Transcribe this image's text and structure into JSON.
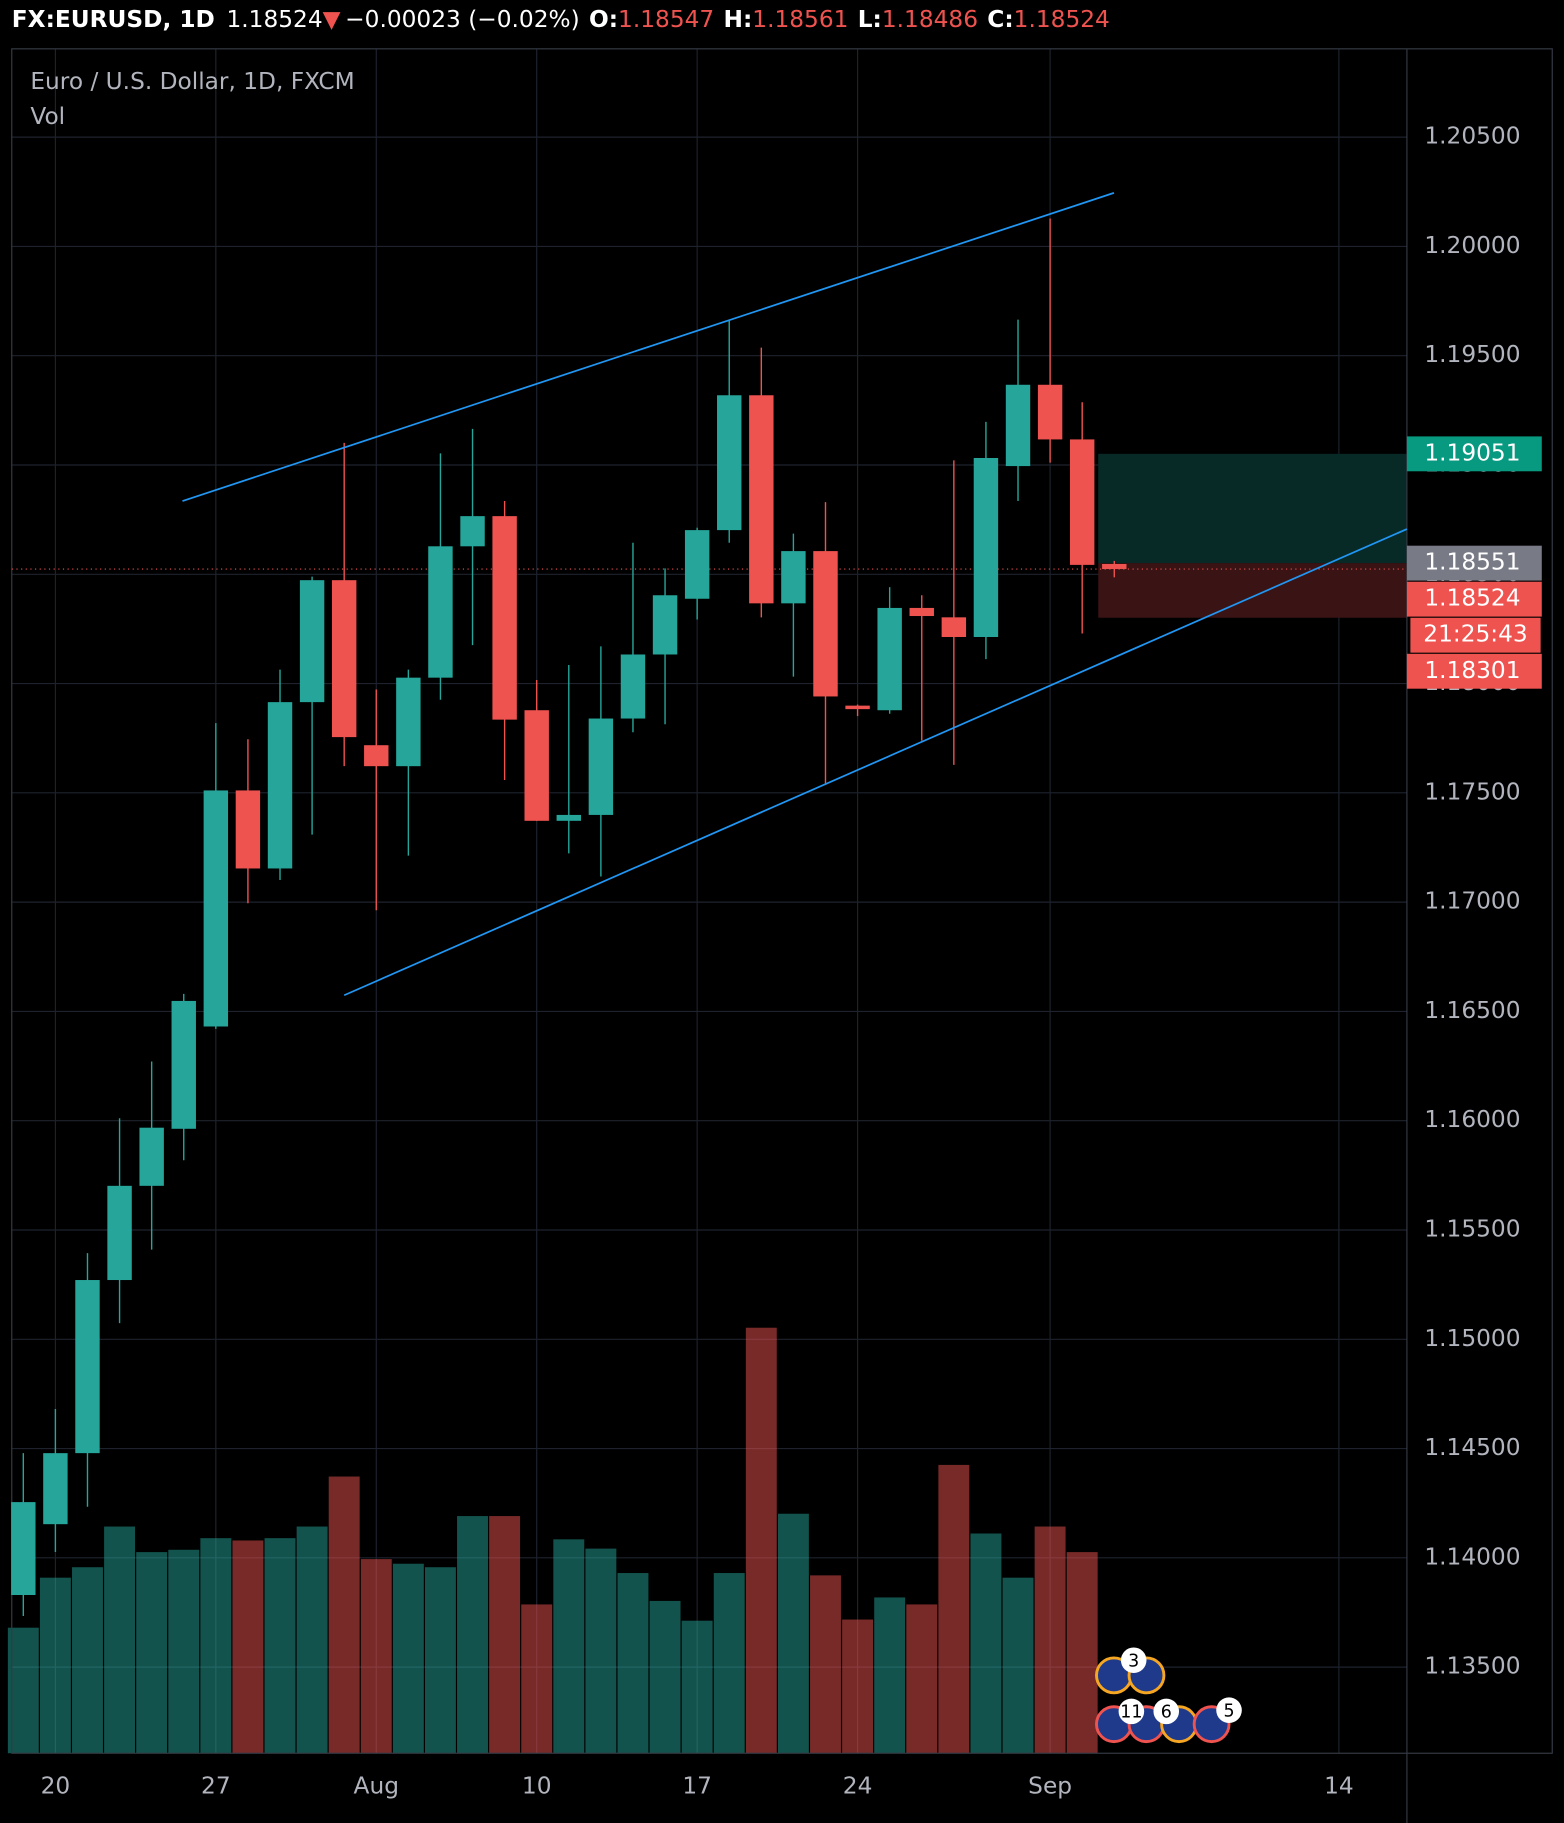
{
  "chart_data": {
    "type": "candlestick",
    "symbol": "FX:EURUSD, 1D",
    "change": "−0.00023 (−0.02%)",
    "ohlc_labels": [
      "O:",
      "H:",
      "L:",
      "C:"
    ],
    "legend_title": "Euro / U.S. Dollar, 1D, FXCM",
    "volume_label": "Vol",
    "colors": {
      "up": "#26a69a",
      "down": "#ef5350",
      "line": "#2196f3",
      "entry": "#787b86",
      "target": "#089981"
    },
    "series": {
      "open": [
        1.1383,
        1.14154,
        1.14479,
        1.15271,
        1.15702,
        1.15963,
        1.16431,
        1.17511,
        1.17154,
        1.17915,
        1.18473,
        1.17718,
        1.17622,
        1.18027,
        1.18628,
        1.18766,
        1.17878,
        1.17372,
        1.17399,
        1.1784,
        1.18133,
        1.18388,
        1.18702,
        1.19319,
        1.18367,
        1.18606,
        1.17899,
        1.17878,
        1.18346,
        1.18303,
        1.18213,
        1.18995,
        1.19367,
        1.19117,
        1.18547
      ],
      "high": [
        1.14479,
        1.14681,
        1.15394,
        1.16011,
        1.16271,
        1.1658,
        1.17819,
        1.17745,
        1.18064,
        1.18489,
        1.19101,
        1.17973,
        1.18064,
        1.19053,
        1.19165,
        1.18835,
        1.18016,
        1.18085,
        1.1817,
        1.18644,
        1.18527,
        1.18713,
        1.1966,
        1.19537,
        1.18686,
        1.1883,
        1.17904,
        1.18441,
        1.18404,
        1.19021,
        1.19197,
        1.19665,
        1.20128,
        1.19287,
        1.18561
      ],
      "low": [
        1.13734,
        1.14027,
        1.14234,
        1.15074,
        1.1541,
        1.15819,
        1.1642,
        1.16995,
        1.17101,
        1.17309,
        1.17622,
        1.16963,
        1.17213,
        1.17926,
        1.18176,
        1.17559,
        1.17372,
        1.17223,
        1.17117,
        1.17777,
        1.17814,
        1.18293,
        1.18644,
        1.18303,
        1.18032,
        1.17537,
        1.17851,
        1.17862,
        1.17739,
        1.17628,
        1.18112,
        1.18835,
        1.19011,
        1.18229,
        1.18486
      ],
      "close": [
        1.14255,
        1.14479,
        1.15271,
        1.15702,
        1.15968,
        1.16548,
        1.17511,
        1.17154,
        1.17915,
        1.18473,
        1.17755,
        1.17622,
        1.18027,
        1.18628,
        1.18766,
        1.17835,
        1.17372,
        1.17399,
        1.1784,
        1.18133,
        1.18404,
        1.18702,
        1.19319,
        1.18367,
        1.18606,
        1.17941,
        1.17883,
        1.18346,
        1.18309,
        1.18213,
        1.19032,
        1.19367,
        1.19117,
        1.18543,
        1.18524
      ],
      "volume": [
        108,
        151,
        160,
        195,
        173,
        175,
        185,
        183,
        185,
        195,
        238,
        167,
        163,
        160,
        204,
        204,
        128,
        184,
        176,
        155,
        131,
        114,
        155,
        366,
        206,
        153,
        115,
        134,
        128,
        248,
        189,
        151,
        195,
        173,
        null
      ]
    },
    "xlim": [
      -0.36,
      43.12
    ],
    "xticks": [
      {
        "value": 1,
        "label": "20"
      },
      {
        "value": 6,
        "label": "27"
      },
      {
        "value": 11,
        "label": "Aug"
      },
      {
        "value": 16,
        "label": "10"
      },
      {
        "value": 21,
        "label": "17"
      },
      {
        "value": 26,
        "label": "24"
      },
      {
        "value": 32,
        "label": "Sep"
      },
      {
        "value": 41,
        "label": "14"
      }
    ],
    "ylim": [
      1.13106,
      1.20904
    ],
    "yticks": [
      {
        "value": 1.135,
        "label": "1.13500"
      },
      {
        "value": 1.14,
        "label": "1.14000"
      },
      {
        "value": 1.145,
        "label": "1.14500"
      },
      {
        "value": 1.15,
        "label": "1.15000"
      },
      {
        "value": 1.155,
        "label": "1.15500"
      },
      {
        "value": 1.16,
        "label": "1.16000"
      },
      {
        "value": 1.165,
        "label": "1.16500"
      },
      {
        "value": 1.17,
        "label": "1.17000"
      },
      {
        "value": 1.175,
        "label": "1.17500"
      },
      {
        "value": 1.18,
        "label": "1.18000"
      },
      {
        "value": 1.185,
        "label": "1.18500"
      },
      {
        "value": 1.19,
        "label": "1.19000"
      },
      {
        "value": 1.195,
        "label": "1.19500"
      },
      {
        "value": 1.2,
        "label": "1.20000"
      },
      {
        "value": 1.205,
        "label": "1.20500"
      }
    ],
    "grid": true,
    "last_price": 1.18524,
    "countdown": "21:25:43",
    "trend_lines": [
      {
        "x": [
          4.96,
          33.99
        ],
        "y": [
          1.18835,
          1.20245
        ]
      },
      {
        "x": [
          10.0,
          43.12
        ],
        "y": [
          1.16574,
          1.18707
        ]
      }
    ],
    "position": {
      "target": 1.19051,
      "entry": 1.18551,
      "stop": 1.18301
    },
    "events": [
      {
        "count": 3
      },
      {
        "count": 11
      },
      {
        "count": 6
      },
      {
        "count": 5
      }
    ]
  }
}
